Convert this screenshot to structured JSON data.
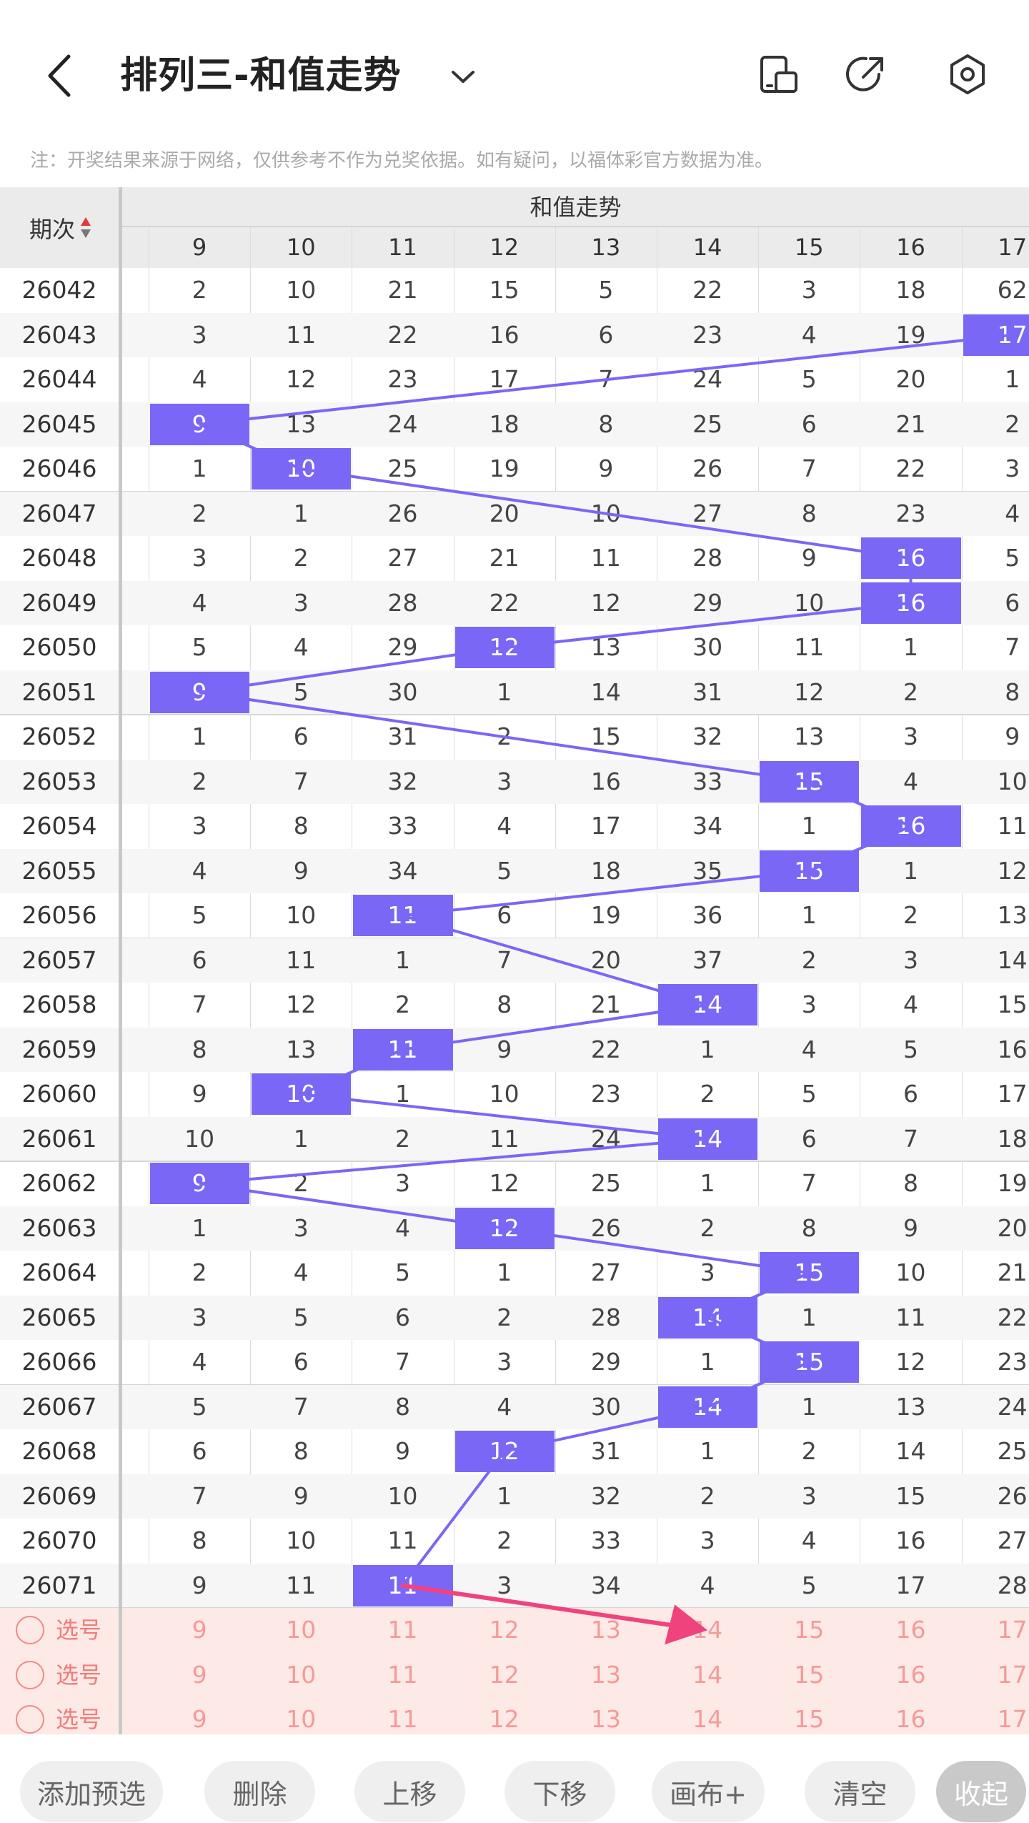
{
  "header": {
    "title": "排列三-和值走势",
    "note": "注：开奖结果来源于网络，仅供参考不作为兑奖依据。如有疑问，以福体彩官方数据为准。"
  },
  "table": {
    "period_label": "期次",
    "group_label": "和值走势",
    "columns": [
      "9",
      "10",
      "11",
      "12",
      "13",
      "14",
      "15",
      "16",
      "17"
    ],
    "rows": [
      {
        "p": "26042",
        "v": [
          "2",
          "10",
          "21",
          "15",
          "5",
          "22",
          "3",
          "18",
          "62"
        ],
        "hit": null
      },
      {
        "p": "26043",
        "v": [
          "3",
          "11",
          "22",
          "16",
          "6",
          "23",
          "4",
          "19",
          "17"
        ],
        "hit": 8
      },
      {
        "p": "26044",
        "v": [
          "4",
          "12",
          "23",
          "17",
          "7",
          "24",
          "5",
          "20",
          "1"
        ],
        "hit": null
      },
      {
        "p": "26045",
        "v": [
          "9",
          "13",
          "24",
          "18",
          "8",
          "25",
          "6",
          "21",
          "2"
        ],
        "hit": 0
      },
      {
        "p": "26046",
        "v": [
          "1",
          "10",
          "25",
          "19",
          "9",
          "26",
          "7",
          "22",
          "3"
        ],
        "hit": 1
      },
      {
        "p": "26047",
        "v": [
          "2",
          "1",
          "26",
          "20",
          "10",
          "27",
          "8",
          "23",
          "4"
        ],
        "hit": null
      },
      {
        "p": "26048",
        "v": [
          "3",
          "2",
          "27",
          "21",
          "11",
          "28",
          "9",
          "16",
          "5"
        ],
        "hit": 7
      },
      {
        "p": "26049",
        "v": [
          "4",
          "3",
          "28",
          "22",
          "12",
          "29",
          "10",
          "16",
          "6"
        ],
        "hit": 7
      },
      {
        "p": "26050",
        "v": [
          "5",
          "4",
          "29",
          "12",
          "13",
          "30",
          "11",
          "1",
          "7"
        ],
        "hit": 3
      },
      {
        "p": "26051",
        "v": [
          "9",
          "5",
          "30",
          "1",
          "14",
          "31",
          "12",
          "2",
          "8"
        ],
        "hit": 0
      },
      {
        "p": "26052",
        "v": [
          "1",
          "6",
          "31",
          "2",
          "15",
          "32",
          "13",
          "3",
          "9"
        ],
        "hit": null
      },
      {
        "p": "26053",
        "v": [
          "2",
          "7",
          "32",
          "3",
          "16",
          "33",
          "15",
          "4",
          "10"
        ],
        "hit": 6
      },
      {
        "p": "26054",
        "v": [
          "3",
          "8",
          "33",
          "4",
          "17",
          "34",
          "1",
          "16",
          "11"
        ],
        "hit": 7
      },
      {
        "p": "26055",
        "v": [
          "4",
          "9",
          "34",
          "5",
          "18",
          "35",
          "15",
          "1",
          "12"
        ],
        "hit": 6
      },
      {
        "p": "26056",
        "v": [
          "5",
          "10",
          "11",
          "6",
          "19",
          "36",
          "1",
          "2",
          "13"
        ],
        "hit": 2
      },
      {
        "p": "26057",
        "v": [
          "6",
          "11",
          "1",
          "7",
          "20",
          "37",
          "2",
          "3",
          "14"
        ],
        "hit": null
      },
      {
        "p": "26058",
        "v": [
          "7",
          "12",
          "2",
          "8",
          "21",
          "14",
          "3",
          "4",
          "15"
        ],
        "hit": 5
      },
      {
        "p": "26059",
        "v": [
          "8",
          "13",
          "11",
          "9",
          "22",
          "1",
          "4",
          "5",
          "16"
        ],
        "hit": 2
      },
      {
        "p": "26060",
        "v": [
          "9",
          "10",
          "1",
          "10",
          "23",
          "2",
          "5",
          "6",
          "17"
        ],
        "hit": 1
      },
      {
        "p": "26061",
        "v": [
          "10",
          "1",
          "2",
          "11",
          "24",
          "14",
          "6",
          "7",
          "18"
        ],
        "hit": 5
      },
      {
        "p": "26062",
        "v": [
          "9",
          "2",
          "3",
          "12",
          "25",
          "1",
          "7",
          "8",
          "19"
        ],
        "hit": 0
      },
      {
        "p": "26063",
        "v": [
          "1",
          "3",
          "4",
          "12",
          "26",
          "2",
          "8",
          "9",
          "20"
        ],
        "hit": 3
      },
      {
        "p": "26064",
        "v": [
          "2",
          "4",
          "5",
          "1",
          "27",
          "3",
          "15",
          "10",
          "21"
        ],
        "hit": 6
      },
      {
        "p": "26065",
        "v": [
          "3",
          "5",
          "6",
          "2",
          "28",
          "14",
          "1",
          "11",
          "22"
        ],
        "hit": 5
      },
      {
        "p": "26066",
        "v": [
          "4",
          "6",
          "7",
          "3",
          "29",
          "1",
          "15",
          "12",
          "23"
        ],
        "hit": 6
      },
      {
        "p": "26067",
        "v": [
          "5",
          "7",
          "8",
          "4",
          "30",
          "14",
          "1",
          "13",
          "24"
        ],
        "hit": 5
      },
      {
        "p": "26068",
        "v": [
          "6",
          "8",
          "9",
          "12",
          "31",
          "1",
          "2",
          "14",
          "25"
        ],
        "hit": 3
      },
      {
        "p": "26069",
        "v": [
          "7",
          "9",
          "10",
          "1",
          "32",
          "2",
          "3",
          "15",
          "26"
        ],
        "hit": null
      },
      {
        "p": "26070",
        "v": [
          "8",
          "10",
          "11",
          "2",
          "33",
          "3",
          "4",
          "16",
          "27"
        ],
        "hit": null
      },
      {
        "p": "26071",
        "v": [
          "9",
          "11",
          "11",
          "3",
          "34",
          "4",
          "5",
          "17",
          "28"
        ],
        "hit": 2
      }
    ],
    "select_rows": [
      {
        "label": "选号",
        "v": [
          "9",
          "10",
          "11",
          "12",
          "13",
          "14",
          "15",
          "16",
          "17"
        ]
      },
      {
        "label": "选号",
        "v": [
          "9",
          "10",
          "11",
          "12",
          "13",
          "14",
          "15",
          "16",
          "17"
        ]
      },
      {
        "label": "选号",
        "v": [
          "9",
          "10",
          "11",
          "12",
          "13",
          "14",
          "15",
          "16",
          "17"
        ]
      }
    ]
  },
  "toolbar": {
    "buttons": [
      "添加预选",
      "删除",
      "上移",
      "下移",
      "画布+",
      "清空",
      "收起"
    ]
  },
  "colors": {
    "hit": "#7a67f5",
    "line": "#7a67f5",
    "arrow": "#f0437e",
    "select_bg": "#fde9e5"
  }
}
